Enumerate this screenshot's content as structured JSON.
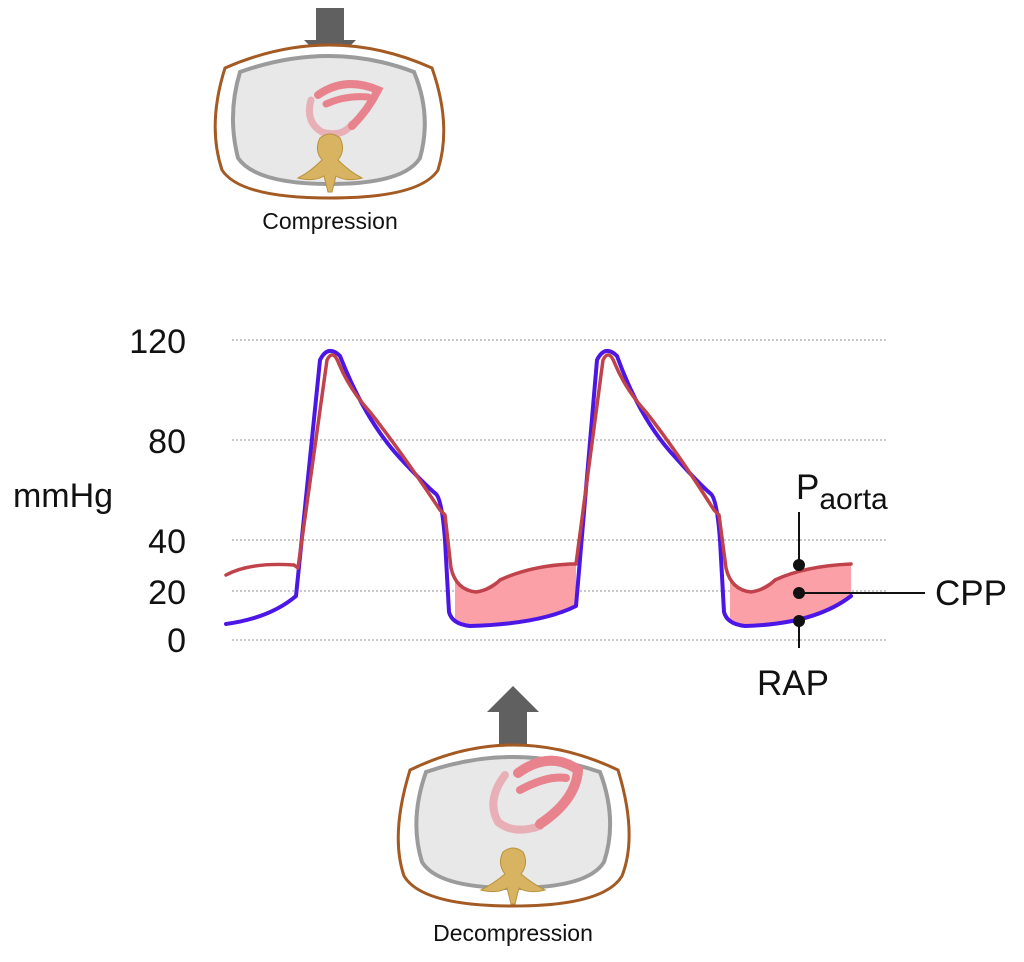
{
  "compression_label": "Compression",
  "decompression_label": "Decompression",
  "pressure_chart": {
    "y_axis_unit": "mmHg",
    "y_ticks": [
      "120",
      "80",
      "40",
      "20",
      "0"
    ],
    "labels": {
      "aortic_main": "P",
      "aortic_sub": "aorta",
      "cpp": "CPP",
      "rap": "RAP"
    }
  },
  "colors": {
    "aortic_pressure": "#c0424b",
    "right_atrial_pressure": "#4b16e6",
    "perfusion_fill": "#fca0a8",
    "chest_wall": "#a45a23",
    "lung": "#9b9b9b",
    "heart": "#e8828c",
    "spine": "#d8b462",
    "arrow": "#606060"
  }
}
